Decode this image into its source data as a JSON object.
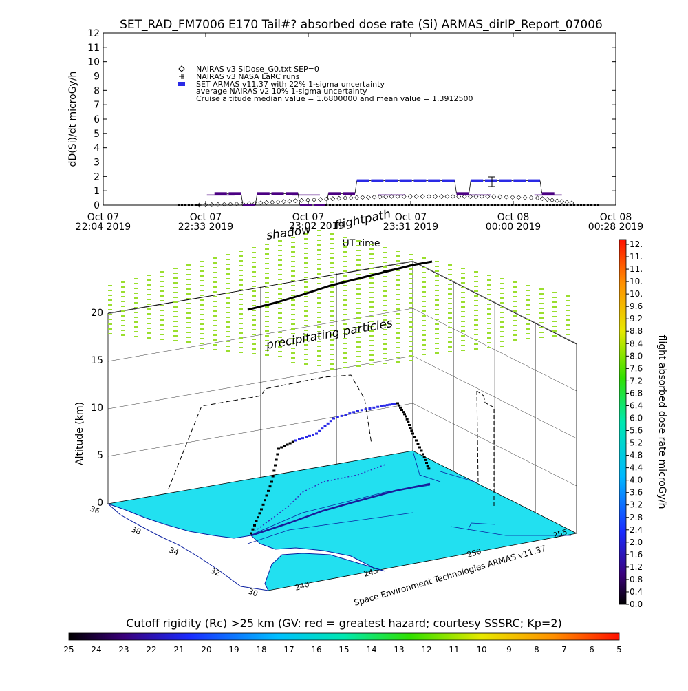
{
  "title": "SET_RAD_FM7006  E170 Tail#? absorbed dose rate (Si) ARMAS_dirIP_Report_07006",
  "top_chart": {
    "ylabel": "dD(Si)/dt microGy/h",
    "xlabel": "UT time",
    "ylim": [
      0,
      12
    ],
    "yticks": [
      "0",
      "1",
      "2",
      "3",
      "4",
      "5",
      "6",
      "7",
      "8",
      "9",
      "10",
      "11",
      "12"
    ],
    "xticks": [
      {
        "line1": "Oct 07",
        "line2": "22:04 2019"
      },
      {
        "line1": "Oct 07",
        "line2": "22:33 2019"
      },
      {
        "line1": "Oct 07",
        "line2": "23:02 2019"
      },
      {
        "line1": "Oct 07",
        "line2": "23:31 2019"
      },
      {
        "line1": "Oct 08",
        "line2": "00:00 2019"
      },
      {
        "line1": "Oct 08",
        "line2": "00:28 2019"
      }
    ],
    "legend": [
      "NAIRAS v3 SiDose_G0.txt SEP=0",
      "NAIRAS v3 NASA LaRC runs",
      "SET ARMAS v11.37 with 22% 1-sigma uncertainty",
      "average NAIRAS v2 10% 1-sigma uncertainty",
      "Cruise altitude median value = 1.6800000 and mean value = 1.3912500"
    ]
  },
  "chart_data": [
    {
      "type": "scatter",
      "title": "SET_RAD_FM7006  E170 Tail#? absorbed dose rate (Si) ARMAS_dirIP_Report_07006",
      "xlabel": "UT time",
      "ylabel": "dD(Si)/dt microGy/h",
      "x_range": [
        "2019-10-07 22:04",
        "2019-10-08 00:28"
      ],
      "ylim": [
        0,
        12
      ],
      "series": [
        {
          "name": "SET ARMAS v11.37 with 22% 1-sigma uncertainty",
          "x": [
            "2019-10-07 22:37",
            "2019-10-07 22:41",
            "2019-10-07 22:45",
            "2019-10-07 22:49",
            "2019-10-07 22:53",
            "2019-10-07 22:57",
            "2019-10-07 23:01",
            "2019-10-07 23:05",
            "2019-10-07 23:09",
            "2019-10-07 23:13",
            "2019-10-07 23:17",
            "2019-10-07 23:21",
            "2019-10-07 23:25",
            "2019-10-07 23:29",
            "2019-10-07 23:33",
            "2019-10-07 23:37",
            "2019-10-07 23:41",
            "2019-10-07 23:45",
            "2019-10-07 23:49",
            "2019-10-07 23:53",
            "2019-10-07 23:57",
            "2019-10-08 00:01",
            "2019-10-08 00:05",
            "2019-10-08 00:09"
          ],
          "y": [
            0.8,
            0.8,
            0.0,
            0.8,
            0.8,
            0.8,
            0.0,
            0.0,
            0.8,
            0.8,
            1.7,
            1.7,
            1.7,
            1.7,
            1.7,
            1.7,
            1.7,
            0.8,
            1.7,
            1.7,
            1.7,
            1.7,
            1.7,
            0.8
          ]
        },
        {
          "name": "NAIRAS v3 SiDose_G0.txt SEP=0",
          "x": [
            "2019-10-07 22:31",
            "2019-10-07 22:45",
            "2019-10-07 22:58",
            "2019-10-07 23:12",
            "2019-10-07 23:25",
            "2019-10-07 23:39",
            "2019-10-07 23:52",
            "2019-10-08 00:06",
            "2019-10-08 00:17"
          ],
          "y": [
            0.0,
            0.1,
            0.3,
            0.5,
            0.6,
            0.6,
            0.6,
            0.5,
            0.1
          ]
        },
        {
          "name": "average NAIRAS v2 10% 1-sigma uncertainty",
          "x": [
            "2019-10-07 22:37",
            "2019-10-07 23:01",
            "2019-10-07 23:25",
            "2019-10-07 23:49",
            "2019-10-08 00:09"
          ],
          "y": [
            0.7,
            0.7,
            0.7,
            0.7,
            0.7
          ]
        }
      ],
      "annotations": [
        "Cruise altitude median value = 1.6800000 and mean value = 1.3912500"
      ]
    },
    {
      "type": "scatter",
      "title": "",
      "ylabel": "Altitude (km)",
      "zlim": [
        0,
        20
      ],
      "zticks": [
        "0",
        "5",
        "10",
        "15",
        "20"
      ],
      "lat_ticks": [
        "30",
        "32",
        "34",
        "36",
        "38"
      ],
      "lon_ticks": [
        "240",
        "245",
        "250",
        "255"
      ],
      "series": [
        {
          "name": "flight path",
          "lon": [
            242,
            243,
            245,
            247,
            249,
            251,
            252
          ],
          "lat": [
            33,
            34,
            35,
            36,
            37,
            37.5,
            35.5
          ],
          "alt_km": [
            0,
            6,
            8,
            10,
            10.5,
            11,
            0
          ]
        }
      ],
      "annotations": [
        "shadow flightpath",
        "precipitating particles"
      ]
    }
  ],
  "annotations": {
    "shadow1": "shadow",
    "shadow2": "flightpath",
    "time_overlap": "23:02 2019",
    "precip": "precipitating particles"
  },
  "three_d": {
    "zlabel": "Altitude (km)",
    "zticks": [
      "0",
      "5",
      "10",
      "15",
      "20"
    ],
    "lat_ticks": [
      "36",
      "38",
      "34",
      "32",
      "30"
    ],
    "lon_ticks": [
      "240",
      "245",
      "250",
      "255"
    ],
    "credit": "Space Environment Technologies ARMAS v11.37"
  },
  "colorbar_right": {
    "label": "flight absorbed dose rate microGy/h",
    "ticks": [
      "12.",
      "11.",
      "11.",
      "10.",
      "10.",
      "9.6",
      "9.2",
      "8.8",
      "8.4",
      "8.0",
      "7.6",
      "7.2",
      "6.8",
      "6.4",
      "6.0",
      "5.6",
      "5.2",
      "4.8",
      "4.4",
      "4.0",
      "3.6",
      "3.2",
      "2.8",
      "2.4",
      "2.0",
      "1.6",
      "1.2",
      "0.8",
      "0.4",
      "0.0"
    ]
  },
  "colorbar_bottom": {
    "label": "Cutoff rigidity (Rc) >25 km (GV: red = greatest hazard; courtesy SSSRC; Kp=2)",
    "ticks": [
      "25",
      "24",
      "23",
      "22",
      "21",
      "20",
      "19",
      "18",
      "17",
      "16",
      "15",
      "14",
      "13",
      "12",
      "11",
      "10",
      "9",
      "8",
      "7",
      "6",
      "5"
    ]
  },
  "colors": {
    "armas": "#2a2ae6",
    "armas_dark": "#4b0082",
    "nairas": "#000000",
    "map_fill": "#22e0f0",
    "particles": "#9ade2e"
  },
  "icons": [
    "diamond-icon",
    "plus-icon",
    "dot-icon"
  ]
}
